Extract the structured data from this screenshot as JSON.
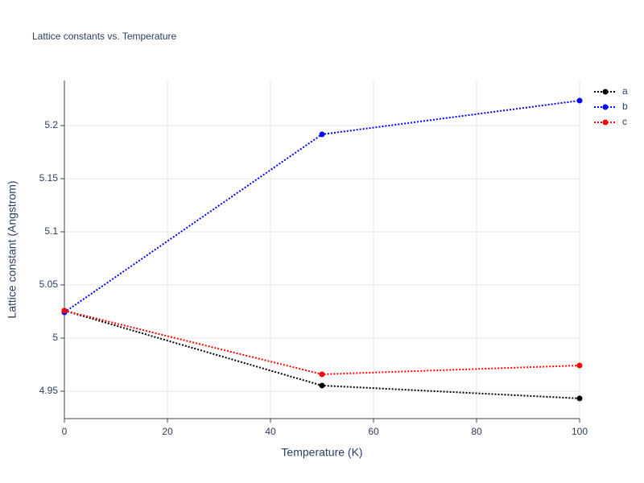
{
  "chart_data": {
    "type": "line",
    "title": "Lattice constants vs. Temperature",
    "xlabel": "Temperature (K)",
    "ylabel": "Lattice constant (Angstrom)",
    "x": [
      0,
      50,
      100
    ],
    "series": [
      {
        "name": "a",
        "color": "#000000",
        "values": [
          5.0258,
          4.9553,
          4.9432
        ]
      },
      {
        "name": "b",
        "color": "#0000ff",
        "values": [
          5.0242,
          5.1917,
          5.2235
        ]
      },
      {
        "name": "c",
        "color": "#ff0000",
        "values": [
          5.0258,
          4.9659,
          4.9742
        ]
      }
    ],
    "xlim": [
      0,
      100
    ],
    "xticks": [
      0,
      20,
      40,
      60,
      80,
      100
    ],
    "ylim": [
      4.9242,
      5.2424
    ],
    "yticks": [
      4.95,
      5,
      5.05,
      5.1,
      5.15,
      5.2
    ],
    "grid": true,
    "legend": "right"
  }
}
